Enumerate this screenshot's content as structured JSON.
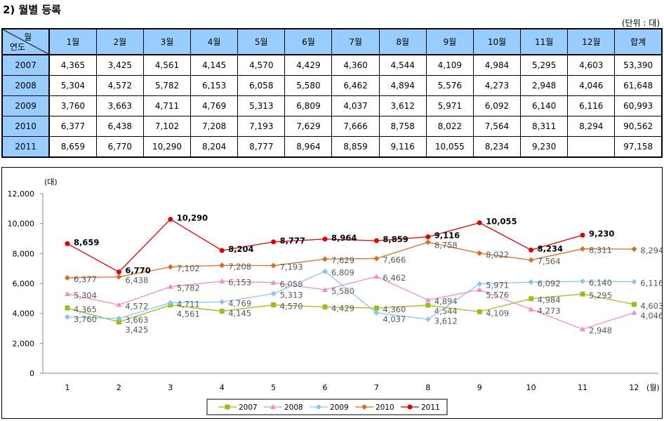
{
  "title": "2) 월별 등록",
  "unit": "(단위 : 대)",
  "table": {
    "corner_month": "월",
    "corner_year": "연도",
    "headers": [
      "1월",
      "2월",
      "3월",
      "4월",
      "5월",
      "6월",
      "7월",
      "8월",
      "9월",
      "10월",
      "11월",
      "12월",
      "합계"
    ],
    "rows": [
      {
        "year": "2007",
        "cells": [
          "4,365",
          "3,425",
          "4,561",
          "4,145",
          "4,570",
          "4,429",
          "4,360",
          "4,544",
          "4,109",
          "4,984",
          "5,295",
          "4,603",
          "53,390"
        ]
      },
      {
        "year": "2008",
        "cells": [
          "5,304",
          "4,572",
          "5,782",
          "6,153",
          "6,058",
          "5,580",
          "6,462",
          "4,894",
          "5,576",
          "4,273",
          "2,948",
          "4,046",
          "61,648"
        ]
      },
      {
        "year": "2009",
        "cells": [
          "3,760",
          "3,663",
          "4,711",
          "4,769",
          "5,313",
          "6,809",
          "4,037",
          "3,612",
          "5,971",
          "6,092",
          "6,140",
          "6,116",
          "60,993"
        ]
      },
      {
        "year": "2010",
        "cells": [
          "6,377",
          "6,438",
          "7,102",
          "7,208",
          "7,193",
          "7,629",
          "7,666",
          "8,758",
          "8,022",
          "7,564",
          "8,311",
          "8,294",
          "90,562"
        ]
      },
      {
        "year": "2011",
        "cells": [
          "8,659",
          "6,770",
          "10,290",
          "8,204",
          "8,777",
          "8,964",
          "8,859",
          "9,116",
          "10,055",
          "8,234",
          "9,230",
          "",
          "97,158"
        ]
      }
    ]
  },
  "chart_data": {
    "type": "line",
    "ylabel": "(대)",
    "xlabel": "(월)",
    "x": [
      1,
      2,
      3,
      4,
      5,
      6,
      7,
      8,
      9,
      10,
      11,
      12
    ],
    "ylim": [
      0,
      12000
    ],
    "yticks": [
      "0",
      "2,000",
      "4,000",
      "6,000",
      "8,000",
      "10,000",
      "12,000"
    ],
    "legend_position": "bottom",
    "series": [
      {
        "name": "2007",
        "color": "#92c020",
        "marker": "square",
        "values": [
          4365,
          3425,
          4561,
          4145,
          4570,
          4429,
          4360,
          4544,
          4109,
          4984,
          5295,
          4603
        ]
      },
      {
        "name": "2008",
        "color": "#f08cc8",
        "marker": "triangle",
        "values": [
          5304,
          4572,
          5782,
          6153,
          6058,
          5580,
          6462,
          4894,
          5576,
          4273,
          2948,
          4046
        ]
      },
      {
        "name": "2009",
        "color": "#8ec4ec",
        "marker": "diamond",
        "values": [
          3760,
          3663,
          4711,
          4769,
          5313,
          6809,
          4037,
          3612,
          5971,
          6092,
          6140,
          6116
        ]
      },
      {
        "name": "2010",
        "color": "#d86c20",
        "marker": "diamond",
        "values": [
          6377,
          6438,
          7102,
          7208,
          7193,
          7629,
          7666,
          8758,
          8022,
          7564,
          8311,
          8294
        ]
      },
      {
        "name": "2011",
        "color": "#e00000",
        "marker": "circle",
        "values": [
          8659,
          6770,
          10290,
          8204,
          8777,
          8964,
          8859,
          9116,
          10055,
          8234,
          9230,
          null
        ]
      }
    ]
  }
}
